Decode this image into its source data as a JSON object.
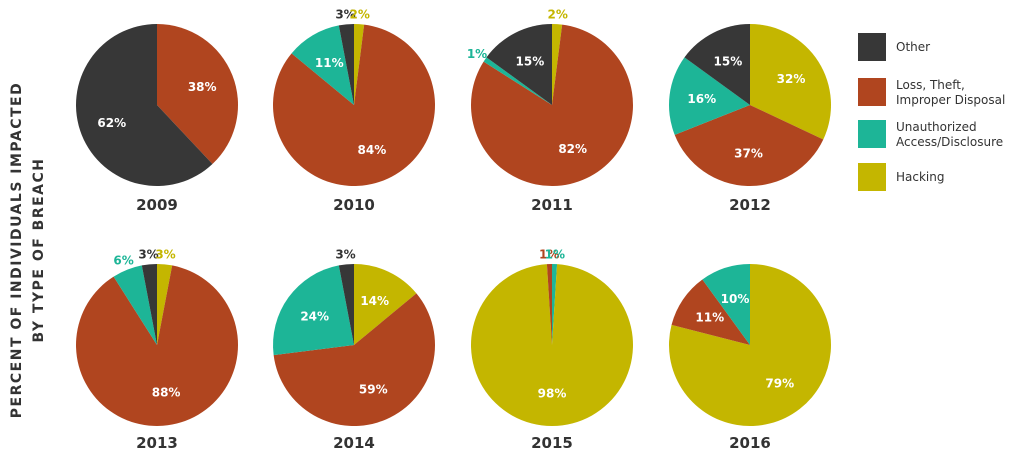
{
  "chart_data": {
    "type": "pie",
    "ylabel_lines": [
      "PERCENT OF INDIVIDUALS IMPACTED",
      "BY TYPE OF BREACH"
    ],
    "categories": [
      "Other",
      "Loss, Theft, Improper Disposal",
      "Unauthorized Access/Disclosure",
      "Hacking"
    ],
    "legend": {
      "placement": "right",
      "items": [
        {
          "key": "other",
          "lines": [
            "Other"
          ],
          "color": "#373737"
        },
        {
          "key": "loss",
          "lines": [
            "Loss, Theft,",
            "Improper Disposal"
          ],
          "color": "#b0451f"
        },
        {
          "key": "unauth",
          "lines": [
            "Unauthorized",
            "Access/Disclosure"
          ],
          "color": "#1db597"
        },
        {
          "key": "hacking",
          "lines": [
            "Hacking"
          ],
          "color": "#c4b600"
        }
      ]
    },
    "pies": [
      {
        "year": "2009",
        "other": 62,
        "loss": 38,
        "unauth": 0,
        "hacking": 0,
        "labels": {
          "other": "62%",
          "loss": "38%"
        }
      },
      {
        "year": "2010",
        "other": 3,
        "loss": 84,
        "unauth": 11,
        "hacking": 2,
        "labels": {
          "other": "3%",
          "loss": "84%",
          "unauth": "11%",
          "hacking": "2%"
        }
      },
      {
        "year": "2011",
        "other": 15,
        "loss": 82,
        "unauth": 1,
        "hacking": 2,
        "labels": {
          "other": "15%",
          "loss": "82%",
          "unauth": "1%",
          "hacking": "2%"
        }
      },
      {
        "year": "2012",
        "other": 15,
        "loss": 37,
        "unauth": 16,
        "hacking": 32,
        "labels": {
          "other": "15%",
          "loss": "37%",
          "unauth": "16%",
          "hacking": "32%"
        }
      },
      {
        "year": "2013",
        "other": 3,
        "loss": 88,
        "unauth": 6,
        "hacking": 3,
        "labels": {
          "other": "3%",
          "loss": "88%",
          "unauth": "6%",
          "hacking": "3%"
        }
      },
      {
        "year": "2014",
        "other": 3,
        "loss": 59,
        "unauth": 24,
        "hacking": 14,
        "labels": {
          "other": "3%",
          "loss": "59%",
          "unauth": "24%",
          "hacking": "14%"
        }
      },
      {
        "year": "2015",
        "other": 0,
        "loss": 1,
        "unauth": 1,
        "hacking": 98,
        "labels": {
          "loss": "1%",
          "unauth": "1%",
          "hacking": "98%"
        }
      },
      {
        "year": "2016",
        "other": 0,
        "loss": 11,
        "unauth": 10,
        "hacking": 79,
        "labels": {
          "loss": "11%",
          "unauth": "10%",
          "hacking": "79%"
        }
      }
    ]
  }
}
